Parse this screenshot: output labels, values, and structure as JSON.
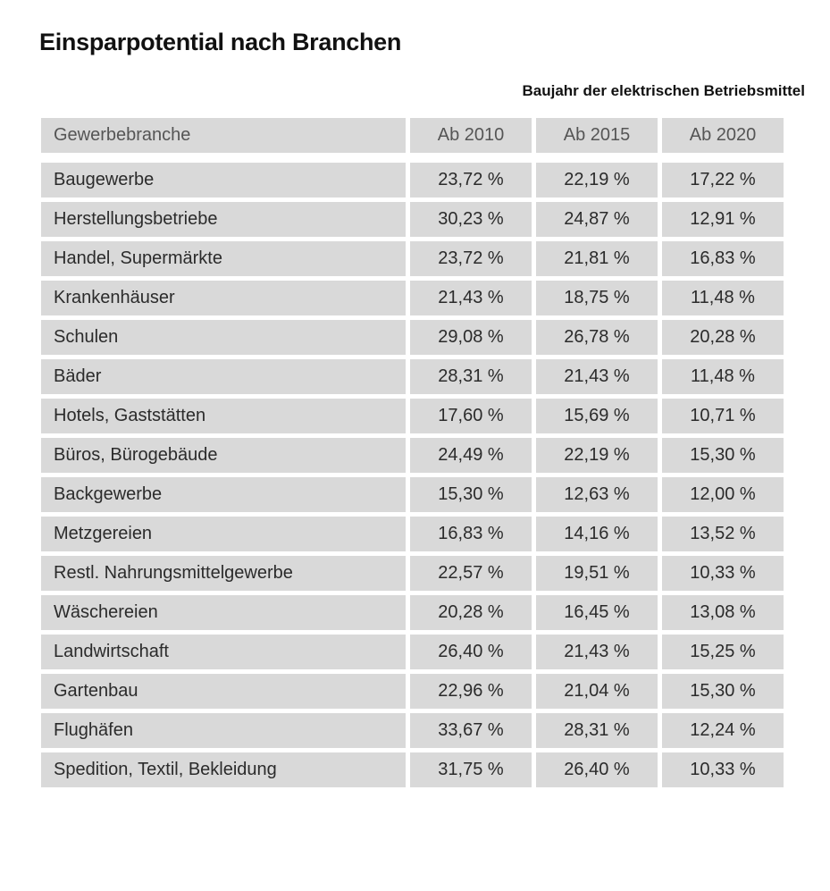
{
  "title": "Einsparpotential nach Branchen",
  "subtitle": "Baujahr der elektrischen Betriebsmittel",
  "table": {
    "headers": [
      "Gewerbebranche",
      "Ab 2010",
      "Ab 2015",
      "Ab 2020"
    ],
    "rows": [
      [
        "Baugewerbe",
        "23,72 %",
        "22,19 %",
        "17,22 %"
      ],
      [
        "Herstellungsbetriebe",
        "30,23 %",
        "24,87 %",
        "12,91 %"
      ],
      [
        "Handel, Supermärkte",
        "23,72 %",
        "21,81 %",
        "16,83 %"
      ],
      [
        "Krankenhäuser",
        "21,43 %",
        "18,75 %",
        "11,48 %"
      ],
      [
        "Schulen",
        "29,08 %",
        "26,78 %",
        "20,28 %"
      ],
      [
        "Bäder",
        "28,31 %",
        "21,43 %",
        "11,48 %"
      ],
      [
        "Hotels, Gaststätten",
        "17,60 %",
        "15,69 %",
        "10,71 %"
      ],
      [
        "Büros, Bürogebäude",
        "24,49 %",
        "22,19 %",
        "15,30 %"
      ],
      [
        "Backgewerbe",
        "15,30 %",
        "12,63 %",
        "12,00 %"
      ],
      [
        "Metzgereien",
        "16,83 %",
        "14,16 %",
        "13,52 %"
      ],
      [
        "Restl. Nahrungsmittelgewerbe",
        "22,57 %",
        "19,51 %",
        "10,33 %"
      ],
      [
        "Wäschereien",
        "20,28 %",
        "16,45 %",
        "13,08 %"
      ],
      [
        "Landwirtschaft",
        "26,40 %",
        "21,43 %",
        "15,25 %"
      ],
      [
        "Gartenbau",
        "22,96 %",
        "21,04 %",
        "15,30 %"
      ],
      [
        "Flughäfen",
        "33,67 %",
        "28,31 %",
        "12,24 %"
      ],
      [
        "Spedition, Textil, Bekleidung",
        "31,75 %",
        "26,40 %",
        "10,33 %"
      ]
    ]
  }
}
